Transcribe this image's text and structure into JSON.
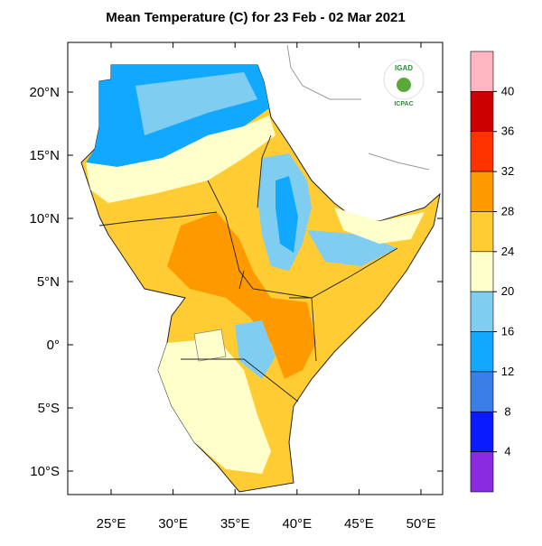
{
  "map": {
    "title": "Mean Temperature (C) for 23 Feb - 02 Mar 2021",
    "lon_ticks": [
      {
        "value": 25,
        "label": "25°E"
      },
      {
        "value": 30,
        "label": "30°E"
      },
      {
        "value": 35,
        "label": "35°E"
      },
      {
        "value": 40,
        "label": "40°E"
      },
      {
        "value": 45,
        "label": "45°E"
      },
      {
        "value": 50,
        "label": "50°E"
      }
    ],
    "lat_ticks": [
      {
        "value": 20,
        "label": "20°N"
      },
      {
        "value": 15,
        "label": "15°N"
      },
      {
        "value": 10,
        "label": "10°N"
      },
      {
        "value": 5,
        "label": "5°N"
      },
      {
        "value": 0,
        "label": "0°"
      },
      {
        "value": -5,
        "label": "5°S"
      },
      {
        "value": -10,
        "label": "10°S"
      }
    ],
    "colorbar": {
      "ticks": [
        40,
        36,
        32,
        28,
        24,
        20,
        16,
        12,
        8,
        4
      ],
      "colors": [
        "#ffb6c1",
        "#cc0000",
        "#ff3300",
        "#ff9900",
        "#ffcc33",
        "#ffffcc",
        "#80cdf2",
        "#11a9ff",
        "#3a7ee8",
        "#0a1cff",
        "#8a2be2"
      ]
    },
    "logo": {
      "name": "IGAD",
      "subtitle": "ICPAC"
    }
  }
}
